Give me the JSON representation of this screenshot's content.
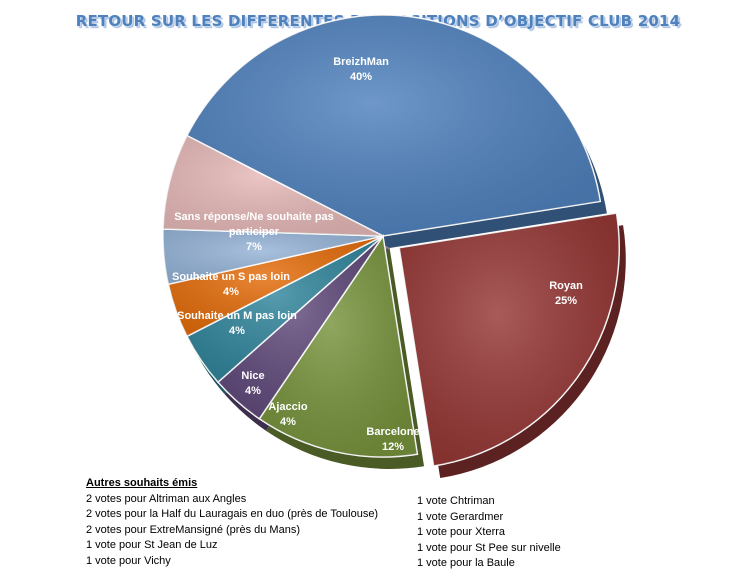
{
  "chart_data": {
    "type": "pie",
    "title": "RETOUR SUR LES DIFFERENTES PROPOSITIONS D’OBJECTIF CLUB 2014",
    "slices": [
      {
        "label": "BreizhMan",
        "value": 40,
        "pct_label": "40%",
        "color": "#4f81bd",
        "explode": false
      },
      {
        "label": "Royan",
        "value": 25,
        "pct_label": "25%",
        "color": "#953735",
        "explode": true
      },
      {
        "label": "Barcelone",
        "value": 12,
        "pct_label": "12%",
        "color": "#77933c",
        "explode": false
      },
      {
        "label": "Ajaccio",
        "value": 4,
        "pct_label": "4%",
        "color": "#604a7b",
        "explode": false
      },
      {
        "label": "Nice",
        "value": 4,
        "pct_label": "4%",
        "color": "#31859c",
        "explode": false
      },
      {
        "label": "Souhaite un M pas loin",
        "value": 4,
        "pct_label": "4%",
        "color": "#e46c0a",
        "explode": false
      },
      {
        "label": "Souhaite un S pas loin",
        "value": 4,
        "pct_label": "4%",
        "color": "#95b3d7",
        "explode": false
      },
      {
        "label": "Sans réponse/Ne souhaite pas participer",
        "value": 7,
        "pct_label": "7%",
        "color": "#e6b9b8",
        "explode": false
      }
    ]
  },
  "notes": {
    "heading": "Autres souhaits émis",
    "left": [
      "2 votes pour  Altriman aux Angles",
      "2 votes pour  la Half du Lauragais en duo  (près de Toulouse)",
      "2 votes pour  ExtreMansigné (près du Mans)",
      "1 vote pour  St Jean de Luz",
      "1 vote pour  Vichy"
    ],
    "right": [
      "1 vote Chtriman",
      "1 vote Gerardmer",
      "1 vote pour  Xterra",
      "1 vote pour  St Pee sur nivelle",
      "1 vote pour  la Baule"
    ]
  }
}
